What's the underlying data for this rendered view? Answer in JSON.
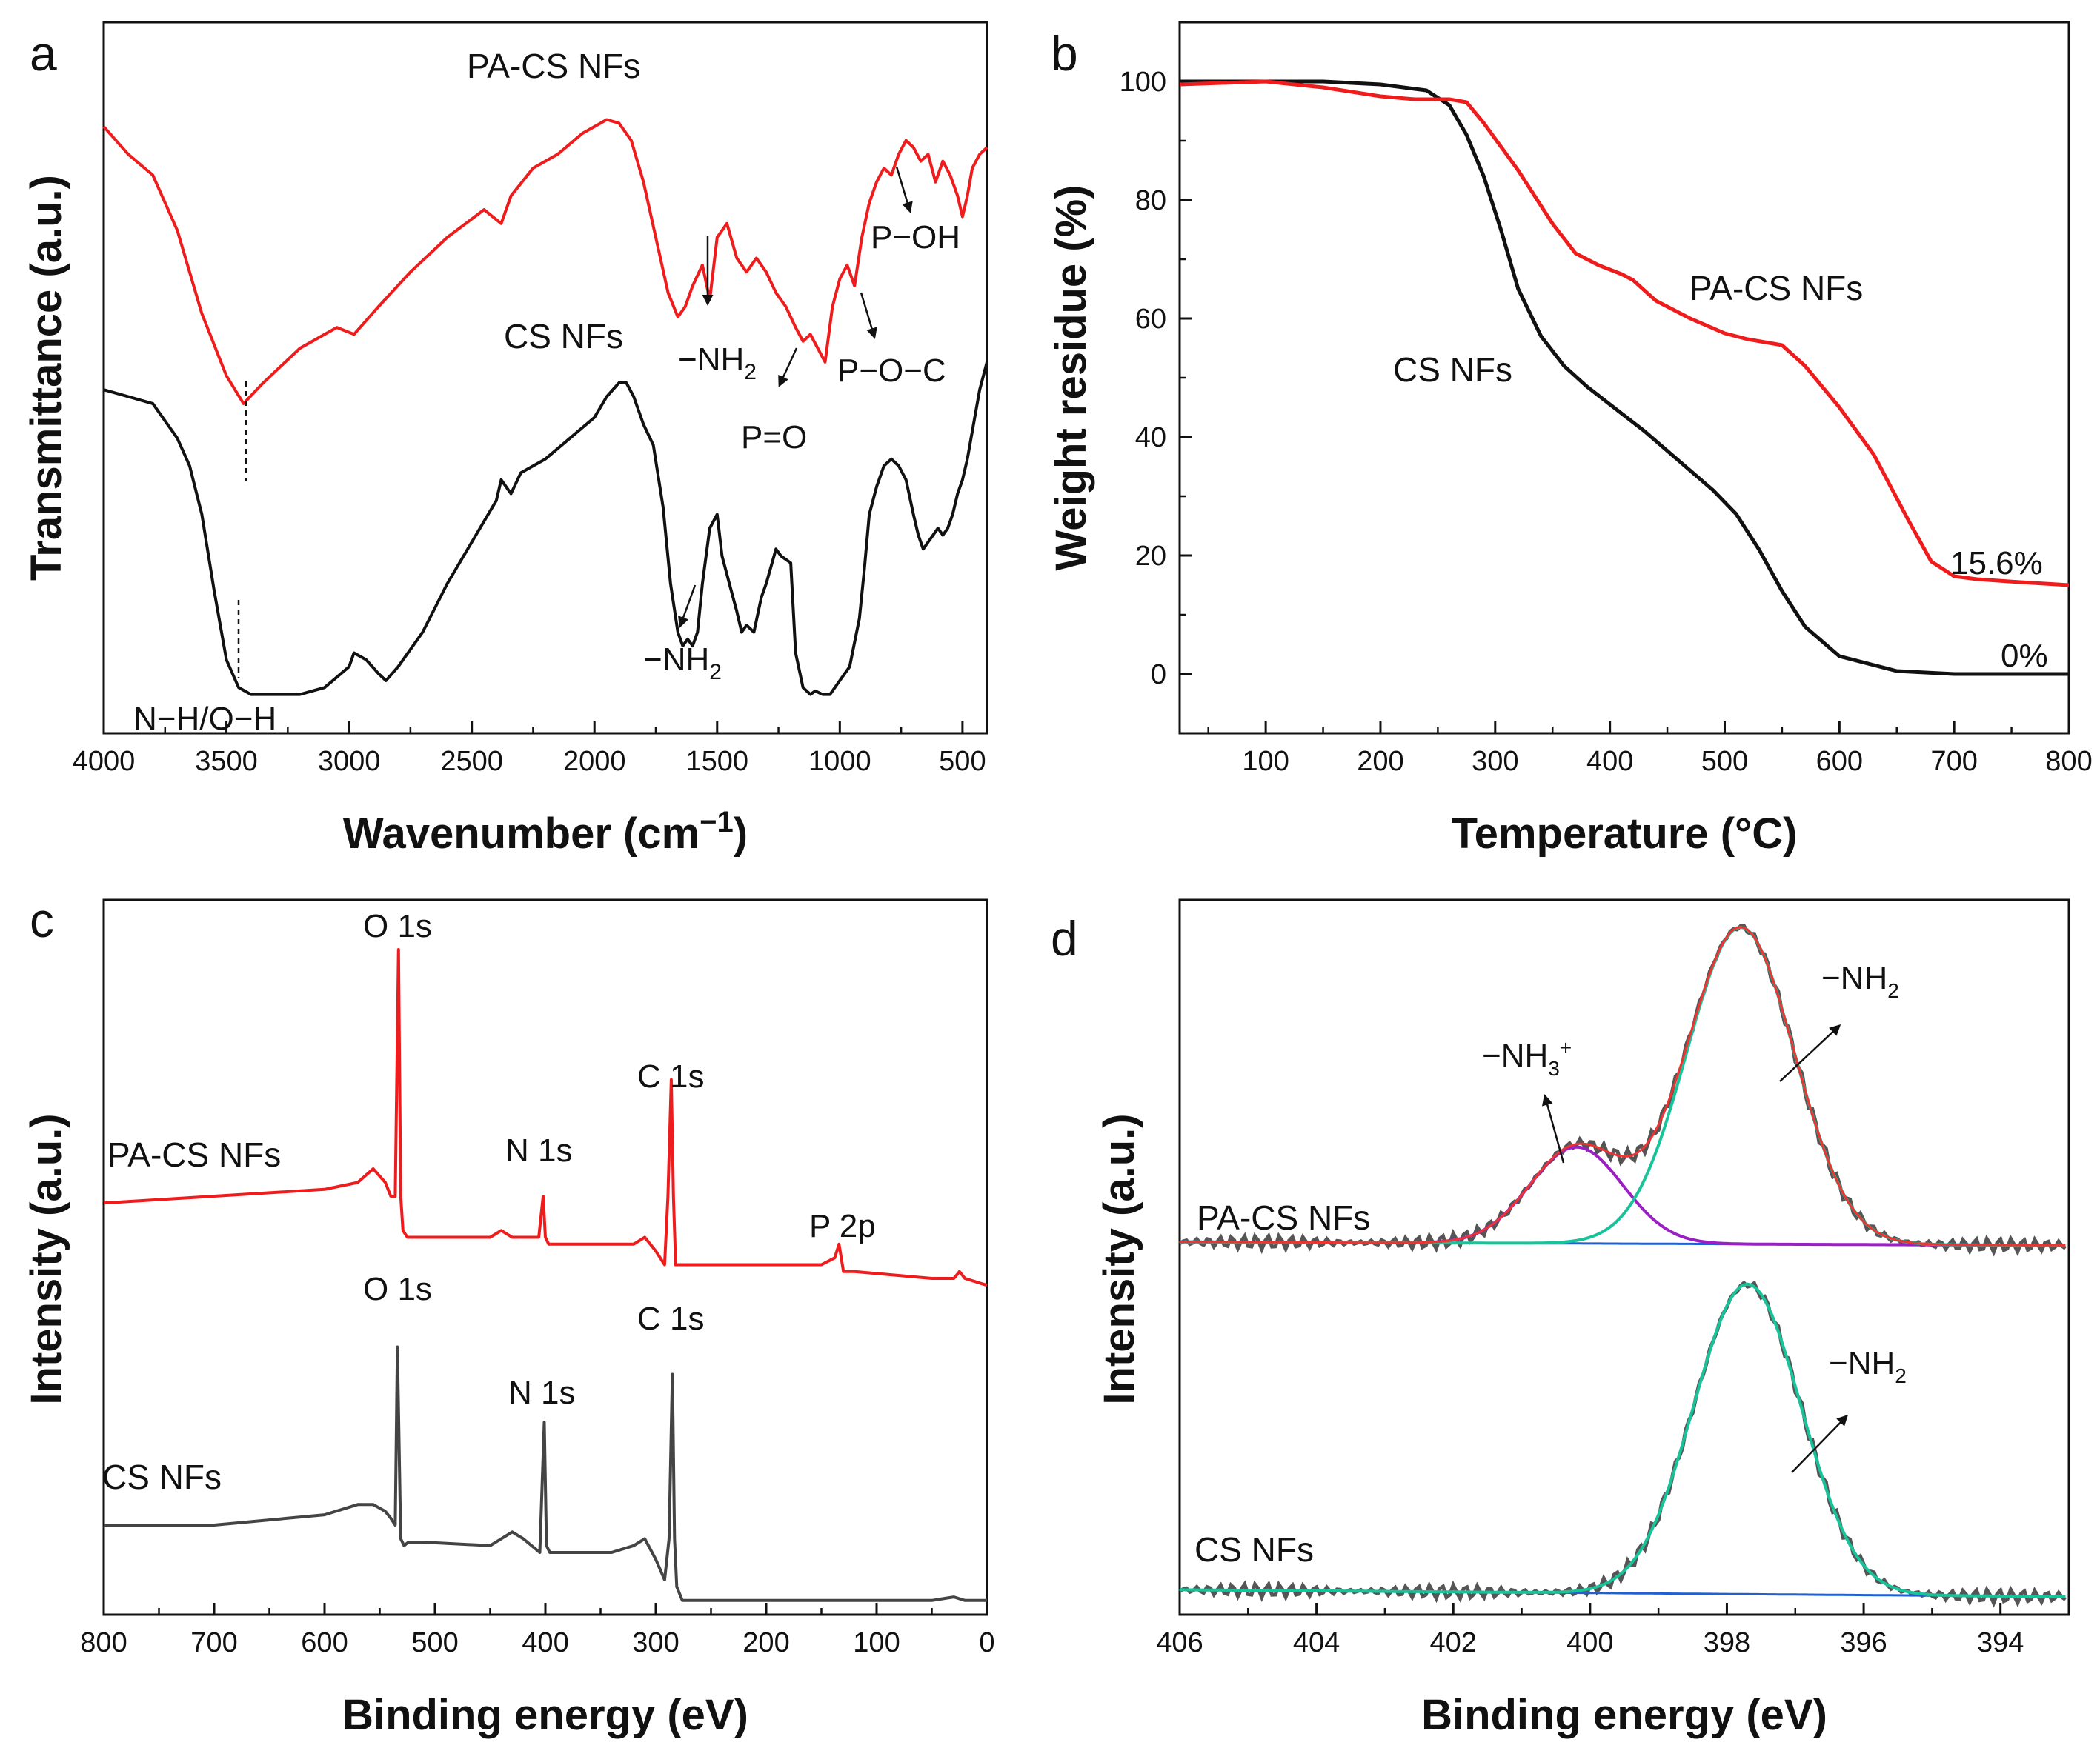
{
  "chart_data": [
    {
      "panel": "a",
      "type": "line",
      "xlabel": "Wavenumber (cm⁻¹)",
      "ylabel": "Transmittance (a.u.)",
      "xlim": [
        4000,
        400
      ],
      "ylim": [
        0,
        1
      ],
      "y_ticks_visible": false,
      "x_ticks": [
        4000,
        3500,
        3000,
        2500,
        2000,
        1500,
        1000,
        500
      ],
      "series": [
        {
          "name": "PA-CS NFs",
          "color": "#ee1c1c",
          "x": [
            4000,
            3900,
            3800,
            3700,
            3600,
            3500,
            3430,
            3350,
            3200,
            3050,
            2980,
            2880,
            2750,
            2600,
            2450,
            2380,
            2340,
            2250,
            2150,
            2050,
            1950,
            1900,
            1850,
            1800,
            1750,
            1700,
            1660,
            1630,
            1600,
            1560,
            1530,
            1500,
            1460,
            1420,
            1380,
            1340,
            1300,
            1260,
            1220,
            1180,
            1150,
            1120,
            1090,
            1060,
            1030,
            1000,
            970,
            940,
            910,
            880,
            850,
            820,
            790,
            760,
            730,
            700,
            670,
            640,
            610,
            580,
            550,
            520,
            500,
            480,
            460,
            430,
            400
          ],
          "values": [
            0.86,
            0.82,
            0.79,
            0.71,
            0.59,
            0.5,
            0.46,
            0.49,
            0.54,
            0.57,
            0.56,
            0.6,
            0.65,
            0.7,
            0.74,
            0.72,
            0.76,
            0.8,
            0.82,
            0.85,
            0.87,
            0.865,
            0.84,
            0.78,
            0.7,
            0.62,
            0.585,
            0.6,
            0.63,
            0.66,
            0.61,
            0.7,
            0.72,
            0.67,
            0.65,
            0.67,
            0.65,
            0.62,
            0.6,
            0.57,
            0.55,
            0.56,
            0.54,
            0.52,
            0.6,
            0.64,
            0.66,
            0.63,
            0.7,
            0.75,
            0.78,
            0.8,
            0.79,
            0.82,
            0.84,
            0.83,
            0.81,
            0.82,
            0.78,
            0.81,
            0.79,
            0.76,
            0.73,
            0.76,
            0.8,
            0.82,
            0.83
          ]
        },
        {
          "name": "CS NFs",
          "color": "#111111",
          "x": [
            4000,
            3900,
            3800,
            3700,
            3650,
            3600,
            3550,
            3500,
            3450,
            3400,
            3300,
            3200,
            3100,
            3000,
            2980,
            2930,
            2880,
            2850,
            2800,
            2700,
            2600,
            2500,
            2400,
            2380,
            2340,
            2300,
            2200,
            2100,
            2000,
            1950,
            1900,
            1870,
            1840,
            1800,
            1760,
            1720,
            1690,
            1660,
            1640,
            1620,
            1600,
            1580,
            1560,
            1530,
            1500,
            1480,
            1450,
            1420,
            1400,
            1380,
            1350,
            1320,
            1300,
            1260,
            1240,
            1200,
            1180,
            1150,
            1120,
            1100,
            1070,
            1040,
            1000,
            960,
            920,
            900,
            880,
            850,
            820,
            790,
            760,
            730,
            700,
            680,
            660,
            640,
            620,
            600,
            580,
            560,
            540,
            520,
            500,
            480,
            460,
            430,
            400
          ],
          "values": [
            0.48,
            0.47,
            0.46,
            0.41,
            0.37,
            0.3,
            0.19,
            0.09,
            0.05,
            0.04,
            0.04,
            0.04,
            0.05,
            0.08,
            0.1,
            0.09,
            0.07,
            0.06,
            0.08,
            0.13,
            0.2,
            0.26,
            0.32,
            0.35,
            0.33,
            0.36,
            0.38,
            0.41,
            0.44,
            0.47,
            0.49,
            0.49,
            0.47,
            0.43,
            0.4,
            0.31,
            0.2,
            0.13,
            0.11,
            0.12,
            0.11,
            0.13,
            0.2,
            0.28,
            0.3,
            0.24,
            0.2,
            0.16,
            0.13,
            0.14,
            0.13,
            0.18,
            0.2,
            0.25,
            0.24,
            0.23,
            0.1,
            0.05,
            0.04,
            0.045,
            0.04,
            0.04,
            0.06,
            0.08,
            0.15,
            0.22,
            0.3,
            0.34,
            0.37,
            0.38,
            0.37,
            0.35,
            0.3,
            0.27,
            0.25,
            0.26,
            0.27,
            0.28,
            0.27,
            0.28,
            0.3,
            0.33,
            0.35,
            0.38,
            0.42,
            0.48,
            0.52
          ]
        }
      ],
      "series_labels": [
        "PA-CS NFs",
        "CS NFs"
      ],
      "annotations": [
        "N−H/O−H",
        "−NH₂",
        "−NH₂",
        "P=O",
        "P−O−C",
        "P−OH"
      ]
    },
    {
      "panel": "b",
      "type": "line",
      "xlabel": "Temperature (°C)",
      "ylabel": "Weight residue (%)",
      "xlim": [
        25,
        800
      ],
      "ylim": [
        -10,
        110
      ],
      "x_ticks": [
        100,
        200,
        300,
        400,
        500,
        600,
        700,
        800
      ],
      "y_ticks": [
        0,
        20,
        40,
        60,
        80,
        100
      ],
      "series": [
        {
          "name": "CS NFs",
          "color": "#111111",
          "x": [
            25,
            100,
            150,
            200,
            240,
            260,
            275,
            290,
            305,
            320,
            340,
            360,
            380,
            400,
            430,
            460,
            490,
            510,
            530,
            550,
            570,
            600,
            650,
            700,
            750,
            800
          ],
          "values": [
            100,
            100,
            100,
            99.5,
            98.5,
            96,
            91,
            84,
            75,
            65,
            57,
            52,
            48.5,
            45.5,
            41,
            36,
            31,
            27,
            21,
            14,
            8,
            3,
            0.5,
            0,
            0,
            0
          ]
        },
        {
          "name": "PA-CS NFs",
          "color": "#ee1c1c",
          "x": [
            25,
            100,
            150,
            200,
            230,
            260,
            275,
            290,
            320,
            350,
            370,
            390,
            410,
            420,
            440,
            470,
            500,
            520,
            550,
            570,
            600,
            630,
            660,
            680,
            700,
            720,
            750,
            800
          ],
          "values": [
            99.5,
            100,
            99,
            97.5,
            97,
            97,
            96.5,
            93,
            85,
            76,
            71,
            69,
            67.5,
            66.5,
            63,
            60,
            57.5,
            56.5,
            55.5,
            52,
            45,
            37,
            26,
            19,
            16.5,
            16,
            15.6,
            15
          ]
        }
      ],
      "series_labels": [
        "PA-CS NFs",
        "CS NFs"
      ],
      "annotations": [
        "15.6%",
        "0%"
      ]
    },
    {
      "panel": "c",
      "type": "line",
      "xlabel": "Binding energy (eV)",
      "ylabel": "Intensity (a.u.)",
      "xlim": [
        800,
        0
      ],
      "ylim": [
        0,
        1
      ],
      "y_ticks_visible": false,
      "x_ticks": [
        800,
        700,
        600,
        500,
        400,
        300,
        200,
        100,
        0
      ],
      "series": [
        {
          "name": "PA-CS NFs",
          "color": "#ee1c1c",
          "x": [
            800,
            700,
            600,
            570,
            556,
            545,
            540,
            536,
            533,
            531,
            529,
            525,
            510,
            450,
            440,
            430,
            406,
            402,
            400,
            397,
            390,
            320,
            310,
            300,
            292,
            289,
            286,
            284,
            282,
            278,
            240,
            200,
            150,
            138,
            134,
            130,
            120,
            50,
            30,
            25,
            20,
            0
          ],
          "values": [
            0.59,
            0.6,
            0.61,
            0.62,
            0.64,
            0.62,
            0.6,
            0.6,
            0.96,
            0.6,
            0.55,
            0.54,
            0.54,
            0.54,
            0.55,
            0.54,
            0.54,
            0.6,
            0.54,
            0.53,
            0.53,
            0.53,
            0.54,
            0.52,
            0.5,
            0.6,
            0.77,
            0.6,
            0.5,
            0.5,
            0.5,
            0.5,
            0.5,
            0.51,
            0.53,
            0.49,
            0.49,
            0.48,
            0.48,
            0.49,
            0.48,
            0.47
          ]
        },
        {
          "name": "CS NFs",
          "color": "#444444",
          "x": [
            800,
            700,
            600,
            570,
            556,
            545,
            540,
            536,
            534,
            531,
            528,
            524,
            510,
            450,
            430,
            420,
            405,
            401,
            399,
            396,
            390,
            340,
            320,
            310,
            300,
            292,
            288,
            285,
            283,
            281,
            276,
            240,
            200,
            100,
            50,
            30,
            20,
            0
          ],
          "values": [
            0.12,
            0.12,
            0.135,
            0.15,
            0.15,
            0.14,
            0.13,
            0.12,
            0.38,
            0.1,
            0.09,
            0.095,
            0.095,
            0.09,
            0.11,
            0.1,
            0.08,
            0.27,
            0.09,
            0.08,
            0.08,
            0.08,
            0.09,
            0.1,
            0.07,
            0.04,
            0.1,
            0.34,
            0.1,
            0.03,
            0.01,
            0.01,
            0.01,
            0.01,
            0.01,
            0.015,
            0.01,
            0.01
          ]
        }
      ],
      "series_labels": [
        "PA-CS NFs",
        "CS NFs"
      ],
      "annotations": [
        "O 1s",
        "N 1s",
        "C 1s",
        "P 2p",
        "O 1s",
        "N 1s",
        "C 1s"
      ]
    },
    {
      "panel": "d",
      "type": "line",
      "xlabel": "Binding energy (eV)",
      "ylabel": "Intensity (a.u.)",
      "xlim": [
        406,
        393
      ],
      "ylim": [
        0,
        1
      ],
      "y_ticks_visible": false,
      "x_ticks": [
        406,
        404,
        402,
        400,
        398,
        396,
        394
      ],
      "fit_components": {
        "PA-CS NFs": [
          {
            "label": "−NH₃⁺",
            "center_ev": 400.2,
            "fwhm_ev": 1.6,
            "height": 0.14
          },
          {
            "label": "−NH₂",
            "center_ev": 397.8,
            "fwhm_ev": 1.85,
            "height": 0.46
          }
        ],
        "CS NFs": [
          {
            "label": "−NH₂",
            "center_ev": 397.7,
            "fwhm_ev": 1.85,
            "height": 0.45
          }
        ]
      },
      "colors": {
        "raw": "#555555",
        "envelope": "#ee3333",
        "nh3_component": "#9b1fc4",
        "nh2_component": "#19c39a",
        "baseline": "#2060d0"
      },
      "series_labels": [
        "PA-CS NFs",
        "CS NFs"
      ],
      "annotations": [
        "−NH₃⁺",
        "−NH₂",
        "−NH₂"
      ]
    }
  ],
  "panels": [
    {
      "letter": "a",
      "xlabel_main": "Wavenumber (cm",
      "xlabel_sup": "−1",
      "xlabel_close": ")",
      "ylabel": "Transmittance (a.u.)",
      "labels": {
        "pa": "PA-CS NFs",
        "cs": "CS NFs"
      },
      "annot": {
        "nh_oh": "N−H/O−H",
        "nh2_main": "−NH",
        "nh2_sub": "2",
        "po": "P=O",
        "poc": "P−O−C",
        "poh": "P−OH"
      }
    },
    {
      "letter": "b",
      "xlabel": "Temperature (°C)",
      "ylabel": "Weight residue (%)",
      "labels": {
        "pa": "PA-CS NFs",
        "cs": "CS NFs"
      },
      "annot": {
        "pa_res": "15.6%",
        "cs_res": "0%"
      }
    },
    {
      "letter": "c",
      "xlabel": "Binding energy (eV)",
      "ylabel": "Intensity (a.u.)",
      "labels": {
        "pa": "PA-CS NFs",
        "cs": "CS NFs"
      },
      "annot": {
        "o1s": "O 1s",
        "n1s": "N 1s",
        "c1s": "C 1s",
        "p2p": "P 2p"
      }
    },
    {
      "letter": "d",
      "xlabel": "Binding energy (eV)",
      "ylabel": "Intensity (a.u.)",
      "labels": {
        "pa": "PA-CS NFs",
        "cs": "CS NFs"
      },
      "annot": {
        "nh3_main": "−NH",
        "nh3_sub": "3",
        "nh3_sup": "+",
        "nh2_main": "−NH",
        "nh2_sub": "2"
      }
    }
  ]
}
